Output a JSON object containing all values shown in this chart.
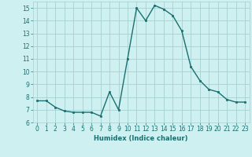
{
  "x": [
    0,
    1,
    2,
    3,
    4,
    5,
    6,
    7,
    8,
    9,
    10,
    11,
    12,
    13,
    14,
    15,
    16,
    17,
    18,
    19,
    20,
    21,
    22,
    23
  ],
  "y": [
    7.7,
    7.7,
    7.2,
    6.9,
    6.8,
    6.8,
    6.8,
    6.5,
    8.4,
    7.0,
    11.0,
    15.0,
    14.0,
    15.2,
    14.9,
    14.4,
    13.2,
    10.4,
    9.3,
    8.6,
    8.4,
    7.8,
    7.6,
    7.6
  ],
  "xlabel": "Humidex (Indice chaleur)",
  "ylim": [
    6,
    15.5
  ],
  "xlim": [
    -0.5,
    23.5
  ],
  "line_color": "#1a7070",
  "marker_color": "#1a7070",
  "bg_color": "#cff0f0",
  "grid_color": "#a8d0d0",
  "yticks": [
    6,
    7,
    8,
    9,
    10,
    11,
    12,
    13,
    14,
    15
  ],
  "xticks": [
    0,
    1,
    2,
    3,
    4,
    5,
    6,
    7,
    8,
    9,
    10,
    11,
    12,
    13,
    14,
    15,
    16,
    17,
    18,
    19,
    20,
    21,
    22,
    23
  ],
  "tick_color": "#1a7070",
  "xlabel_fontsize": 6.0,
  "tick_fontsize": 5.5,
  "linewidth": 1.0,
  "markersize": 1.8
}
